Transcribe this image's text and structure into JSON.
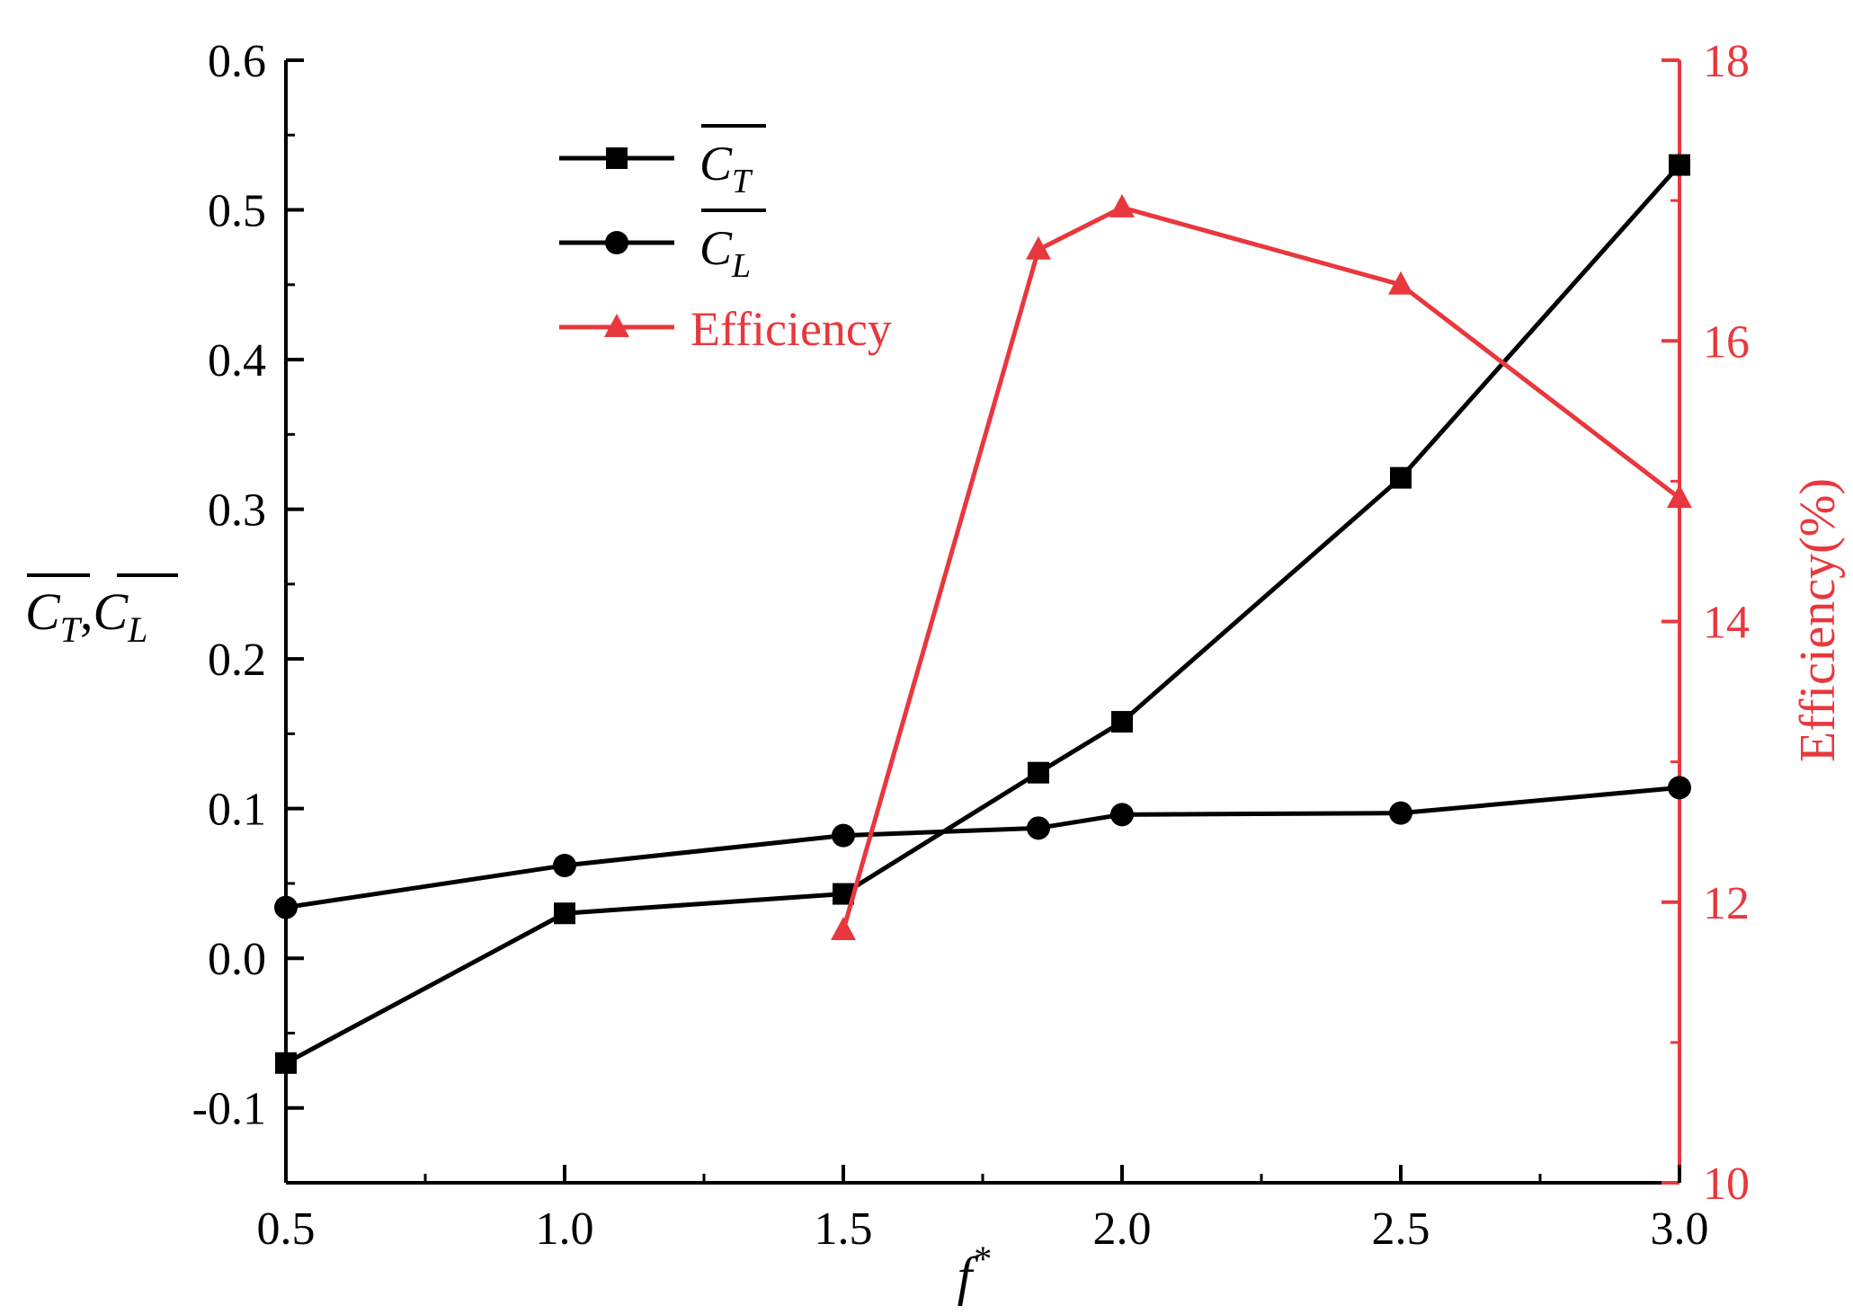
{
  "chart_data": {
    "type": "line",
    "x": [
      0.5,
      1.0,
      1.5,
      1.85,
      2.0,
      2.5,
      3.0
    ],
    "xlabel": {
      "base": "f",
      "sup": "*"
    },
    "xlim": [
      0.5,
      3.0
    ],
    "xticks": [
      "0.5",
      "1.0",
      "1.5",
      "2.0",
      "2.5",
      "3.0"
    ],
    "ylabel_left": {
      "first_base": "C",
      "first_sub": "T",
      "separator": ",",
      "second_base": "C",
      "second_sub": "L"
    },
    "ylim_left": [
      -0.15,
      0.6
    ],
    "yticks_left": [
      "-0.1",
      "0.0",
      "0.1",
      "0.2",
      "0.3",
      "0.4",
      "0.5",
      "0.6"
    ],
    "ylabel_right": "Efficiency(%)",
    "ylim_right": [
      10,
      18
    ],
    "yticks_right": [
      "10",
      "12",
      "14",
      "16",
      "18"
    ],
    "series": [
      {
        "name": "C_T",
        "legend_base": "C",
        "legend_sub": "T",
        "axis": "left",
        "marker": "square",
        "color": "#000000",
        "x": [
          0.5,
          1.0,
          1.5,
          1.85,
          2.0,
          2.5,
          3.0
        ],
        "values": [
          -0.07,
          0.03,
          0.043,
          0.124,
          0.158,
          0.321,
          0.53
        ]
      },
      {
        "name": "C_L",
        "legend_base": "C",
        "legend_sub": "L",
        "axis": "left",
        "marker": "circle",
        "color": "#000000",
        "x": [
          0.5,
          1.0,
          1.5,
          1.85,
          2.0,
          2.5,
          3.0
        ],
        "values": [
          0.034,
          0.062,
          0.082,
          0.087,
          0.096,
          0.097,
          0.114
        ]
      },
      {
        "name": "Efficiency",
        "legend_label": "Efficiency",
        "axis": "right",
        "marker": "triangle",
        "color": "#e8383d",
        "x": [
          1.5,
          1.85,
          2.0,
          2.5,
          3.0
        ],
        "values": [
          11.8,
          16.65,
          16.95,
          16.4,
          14.88
        ]
      }
    ],
    "legend_position": "top-left"
  }
}
